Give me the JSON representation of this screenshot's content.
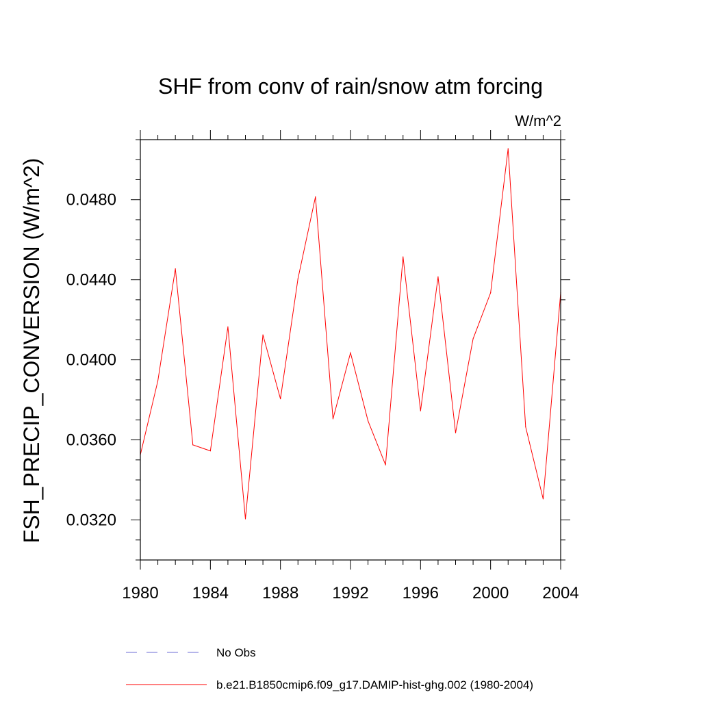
{
  "chart_data": {
    "type": "line",
    "title": "SHF from conv of rain/snow atm forcing",
    "units": "W/m^2",
    "xlabel": "",
    "ylabel": "FSH_PRECIP_CONVERSION  (W/m^2)",
    "xlim": [
      1980,
      2004
    ],
    "ylim": [
      0.03,
      0.051
    ],
    "x_ticks": [
      1980,
      1984,
      1988,
      1992,
      1996,
      2000,
      2004
    ],
    "y_ticks": [
      "0.0320",
      "0.0360",
      "0.0400",
      "0.0440",
      "0.0480"
    ],
    "grid": false,
    "x": [
      1980,
      1981,
      1982,
      1983,
      1984,
      1985,
      1986,
      1987,
      1988,
      1989,
      1990,
      1991,
      1992,
      1993,
      1994,
      1995,
      1996,
      1997,
      1998,
      1999,
      2000,
      2001,
      2002,
      2003,
      2004
    ],
    "series": [
      {
        "name": "b.e21.B1850cmip6.f09_g17.DAMIP-hist-ghg.002 (1980-2004)",
        "color": "#ff0000",
        "values": [
          0.03525,
          0.03895,
          0.04455,
          0.03575,
          0.03545,
          0.04165,
          0.03205,
          0.04125,
          0.03805,
          0.04405,
          0.04815,
          0.03705,
          0.04035,
          0.03695,
          0.03475,
          0.04515,
          0.03745,
          0.04415,
          0.03635,
          0.04105,
          0.04335,
          0.05055,
          0.03665,
          0.03305,
          0.04335
        ]
      }
    ],
    "legend": {
      "placement": "bottom",
      "entries": [
        {
          "label": "No Obs",
          "style": "dashed",
          "color": "#6b6bd6"
        },
        {
          "label": "b.e21.B1850cmip6.f09_g17.DAMIP-hist-ghg.002 (1980-2004)",
          "style": "solid",
          "color": "#ff0000"
        }
      ]
    }
  }
}
